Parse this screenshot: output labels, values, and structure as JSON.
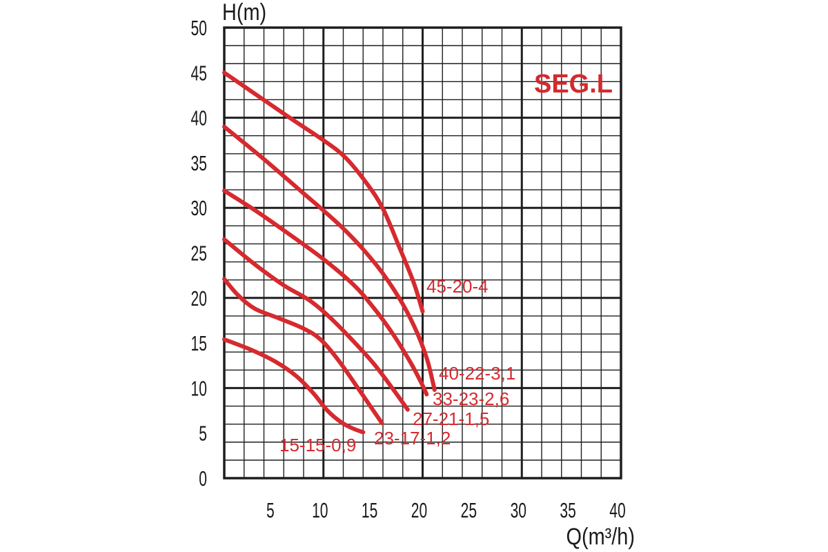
{
  "chart_data": {
    "type": "line",
    "title": "SEG.L",
    "xlabel": "Q(m³/h)",
    "ylabel": "H(m)",
    "xlim": [
      0,
      40
    ],
    "ylim": [
      0,
      50
    ],
    "x_ticks": [
      5,
      10,
      15,
      20,
      25,
      30,
      35,
      40
    ],
    "y_ticks": [
      0,
      5,
      10,
      15,
      20,
      25,
      30,
      35,
      40,
      45,
      50
    ],
    "grid": true,
    "series": [
      {
        "name": "45-20-4",
        "x": [
          0,
          3.3,
          6.6,
          10,
          12.2,
          14.3,
          16,
          17.7,
          19.1,
          20
        ],
        "y": [
          45,
          42.5,
          40,
          37.5,
          35.6,
          32.8,
          29.9,
          25.5,
          21.7,
          18.5
        ]
      },
      {
        "name": "40-22-3,1",
        "x": [
          0,
          4,
          8,
          10,
          12,
          14,
          16,
          18,
          19.5,
          20.5,
          21.2
        ],
        "y": [
          39,
          35.4,
          31.6,
          29.7,
          27.7,
          25.4,
          22.7,
          19.3,
          16,
          13,
          9.8
        ]
      },
      {
        "name": "33-23-2,6",
        "x": [
          0,
          3,
          6,
          10,
          13,
          15,
          17,
          18.8,
          19.9,
          20.4
        ],
        "y": [
          31.9,
          29.8,
          27.5,
          24.3,
          21.5,
          19,
          16,
          12.8,
          10.5,
          9.3
        ]
      },
      {
        "name": "27-21-1,5",
        "x": [
          0,
          3,
          6,
          8.5,
          10.5,
          12.5,
          15,
          17,
          18.5
        ],
        "y": [
          26.5,
          23.8,
          21.4,
          19.8,
          18,
          15.8,
          12.8,
          9.9,
          7.6
        ]
      },
      {
        "name": "23-17-1,2",
        "x": [
          0,
          1.4,
          3.1,
          5.6,
          8,
          9.7,
          11.5,
          13.6,
          15.9
        ],
        "y": [
          22.1,
          20.3,
          18.8,
          17.7,
          16.6,
          15.4,
          13.1,
          9.8,
          6.1
        ]
      },
      {
        "name": "15-15-0,9",
        "x": [
          0,
          2.8,
          5.2,
          7.3,
          9,
          10.4,
          11.8,
          13,
          14
        ],
        "y": [
          15.4,
          14.2,
          12.9,
          11.3,
          9.4,
          7.5,
          6.2,
          5.5,
          5.1
        ]
      }
    ]
  },
  "colors": {
    "curve": "#d62a2f",
    "title": "#d42a2e",
    "grid": "#1e1e1e",
    "background": "#ffffff"
  }
}
